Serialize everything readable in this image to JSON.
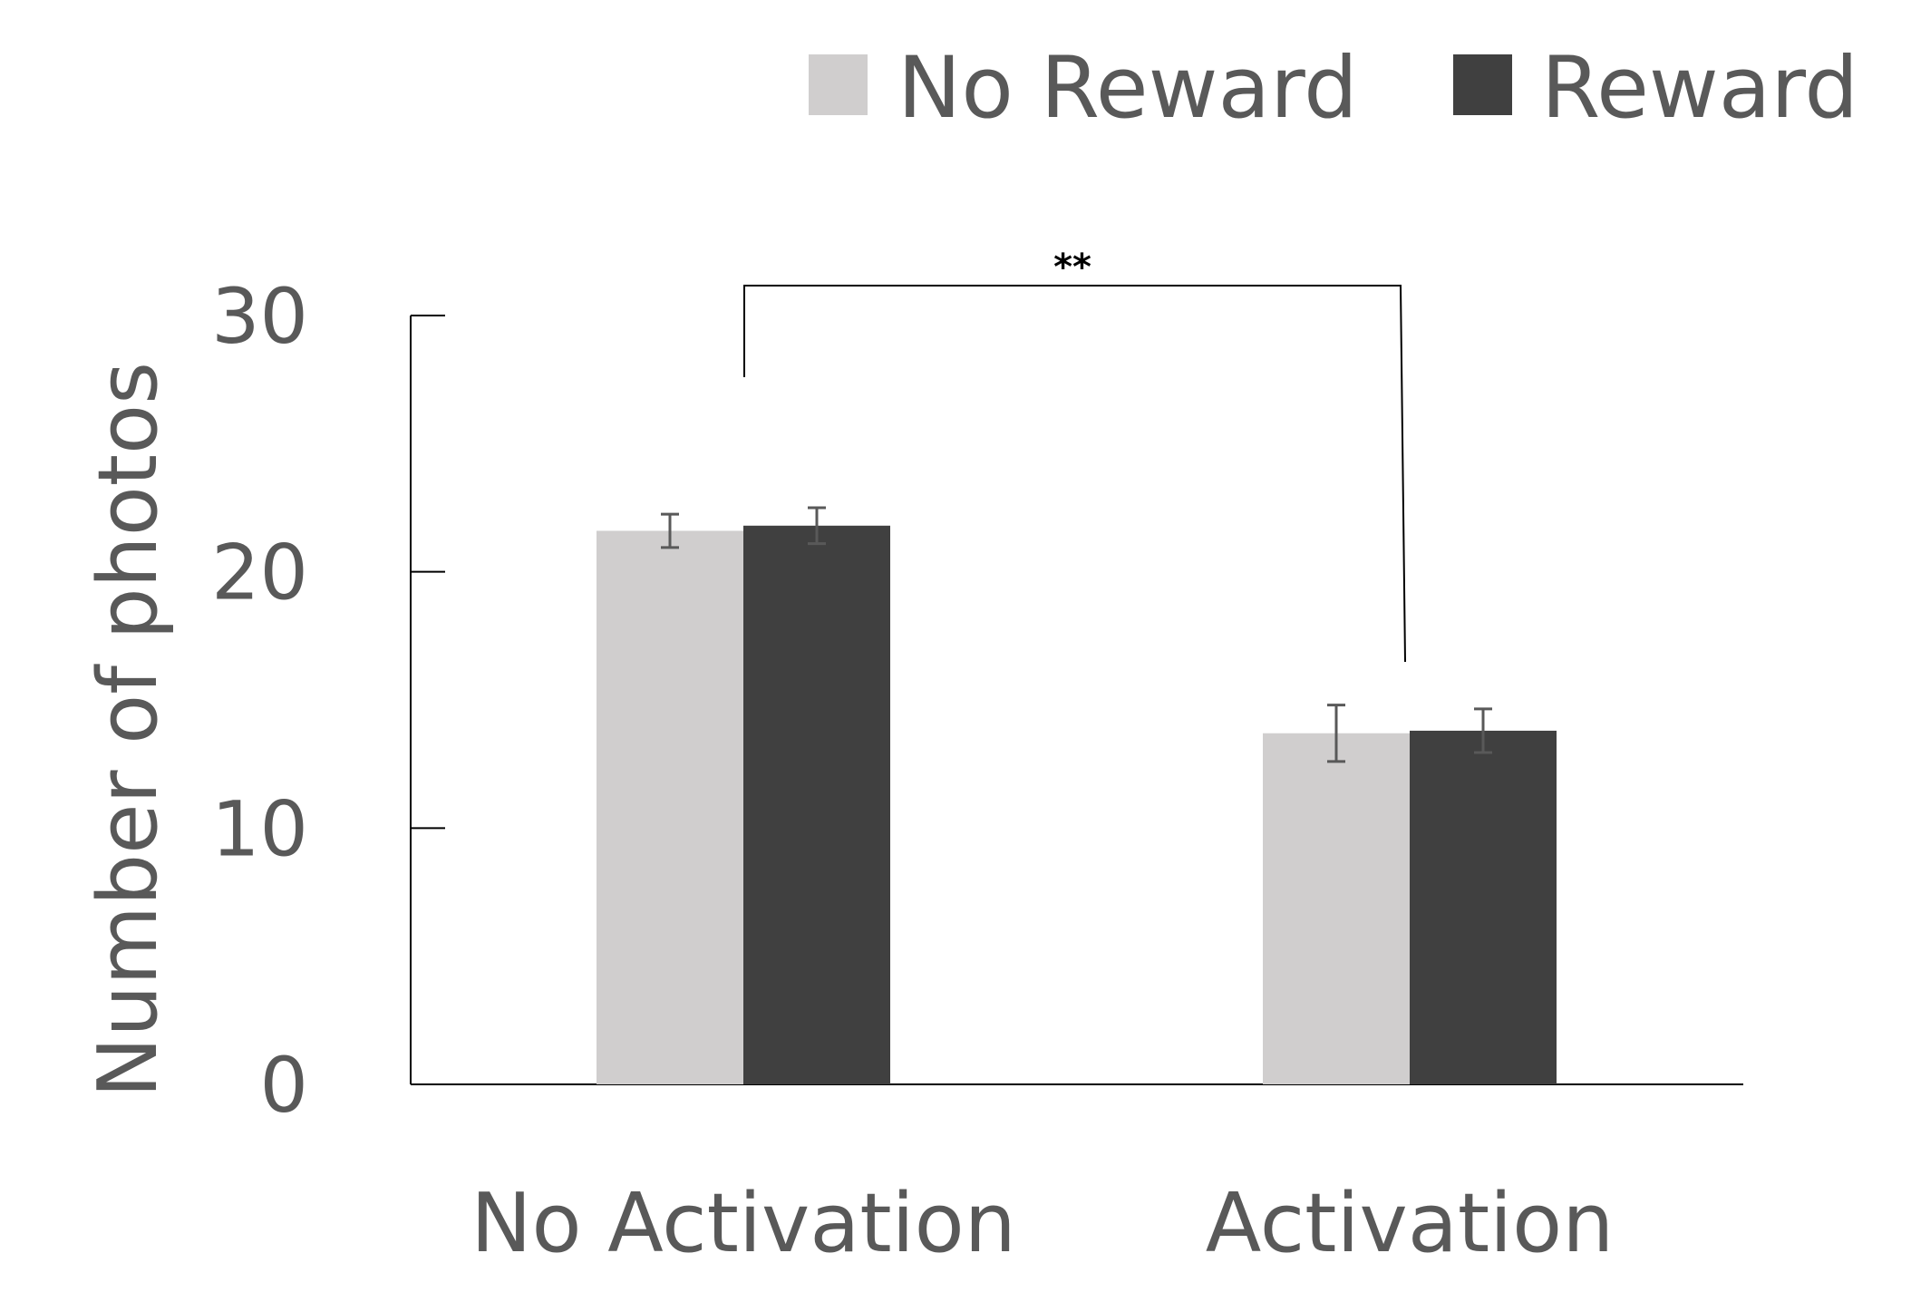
{
  "chart_data": {
    "type": "bar",
    "categories": [
      "No Activation",
      "Activation"
    ],
    "series": [
      {
        "name": "No Reward",
        "values": [
          21.6,
          13.7
        ],
        "errors": [
          0.65,
          1.1
        ],
        "color": "#d0cece"
      },
      {
        "name": "Reward",
        "values": [
          21.8,
          13.8
        ],
        "errors": [
          0.7,
          0.85
        ],
        "color": "#404040"
      }
    ],
    "title": "",
    "xlabel": "",
    "ylabel": "Number of photos",
    "ylim": [
      0,
      30
    ],
    "yticks": [
      "0",
      "10",
      "20",
      "30"
    ],
    "grid": false,
    "legend_position": "top-right",
    "annotations": [
      {
        "text": "**",
        "between": [
          "No Activation",
          "Activation"
        ]
      }
    ]
  }
}
